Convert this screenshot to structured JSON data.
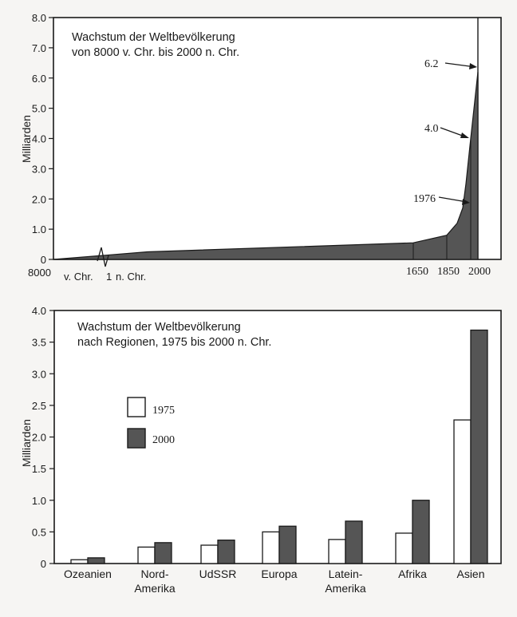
{
  "colors": {
    "ink": "#1a1a1a",
    "fill_dark": "#555555",
    "fill_light": "#ffffff",
    "paper": "#f6f5f3"
  },
  "chart_data": [
    {
      "type": "area",
      "title_lines": [
        "Wachstum der Weltbevölkerung",
        "von 8000 v. Chr. bis 2000 n. Chr."
      ],
      "ylabel": "Milliarden",
      "yticks": [
        "0",
        "1.0",
        "2.0",
        "3.0",
        "4.0",
        "5.0",
        "6.0",
        "7.0",
        "8.0"
      ],
      "ylim": [
        0,
        8
      ],
      "x_labels": [
        "8000",
        "v. Chr.",
        "1",
        "n. Chr.",
        "1650",
        "1850",
        "2000"
      ],
      "points": [
        {
          "x": "8000 v. Chr.",
          "y": 0.0
        },
        {
          "x": "1 n. Chr.",
          "y": 0.25
        },
        {
          "x": "1650",
          "y": 0.55
        },
        {
          "x": "1750",
          "y": 0.8
        },
        {
          "x": "1850",
          "y": 1.2
        },
        {
          "x": "1900",
          "y": 1.7
        },
        {
          "x": "1950",
          "y": 2.5
        },
        {
          "x": "1976",
          "y": 4.0
        },
        {
          "x": "2000",
          "y": 6.2
        }
      ],
      "annotations": [
        {
          "label": "6.2",
          "value": 6.2
        },
        {
          "label": "4.0",
          "value": 4.0
        },
        {
          "label": "1976",
          "value": 1976
        }
      ],
      "grid": false
    },
    {
      "type": "bar",
      "title_lines": [
        "Wachstum der Weltbevölkerung",
        "nach Regionen, 1975 bis 2000 n. Chr."
      ],
      "ylabel": "Milliarden",
      "yticks": [
        "0",
        "0.5",
        "1.0",
        "1.5",
        "2.0",
        "2.5",
        "3.0",
        "3.5",
        "4.0"
      ],
      "ylim": [
        0,
        4
      ],
      "categories": [
        [
          "Ozeanien"
        ],
        [
          "Nord-",
          "Amerika"
        ],
        [
          "UdSSR"
        ],
        [
          "Europa"
        ],
        [
          "Latein-",
          "Amerika"
        ],
        [
          "Afrika"
        ],
        [
          "Asien"
        ]
      ],
      "series": [
        {
          "name": "1975",
          "color": "#ffffff",
          "values": [
            0.06,
            0.26,
            0.29,
            0.5,
            0.38,
            0.48,
            2.27
          ]
        },
        {
          "name": "2000",
          "color": "#555555",
          "values": [
            0.09,
            0.33,
            0.37,
            0.59,
            0.67,
            1.0,
            3.69
          ]
        }
      ],
      "legend_position": "left-middle",
      "grid": false
    }
  ]
}
